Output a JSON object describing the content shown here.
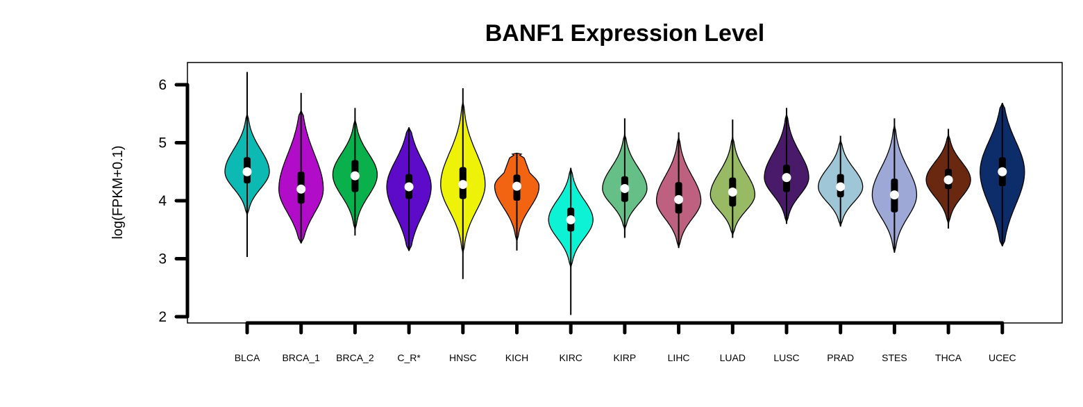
{
  "chart_data": {
    "type": "violin",
    "title": "BANF1 Expression Level",
    "xlabel": "",
    "ylabel": "log(FPKM+0.1)",
    "ylim": [
      2,
      6
    ],
    "yticks": [
      2,
      3,
      4,
      5,
      6
    ],
    "categories": [
      "BLCA",
      "BRCA_1",
      "BRCA_2",
      "C_R*",
      "HNSC",
      "KICH",
      "KIRC",
      "KIRP",
      "LIHC",
      "LUAD",
      "LUSC",
      "PRAD",
      "STES",
      "THCA",
      "UCEC"
    ],
    "series": [
      {
        "category": "BLCA",
        "color": "#0CB9B3",
        "median": 4.5,
        "q1": 4.3,
        "q3": 4.75,
        "whisker_min": 3.03,
        "whisker_max": 6.22,
        "violin_min": 3.75,
        "violin_max": 5.5,
        "mode": 4.5,
        "shape": "symmetric"
      },
      {
        "category": "BRCA_1",
        "color": "#B10DC9",
        "median": 4.2,
        "q1": 3.95,
        "q3": 4.5,
        "whisker_min": 3.27,
        "whisker_max": 5.86,
        "violin_min": 3.27,
        "violin_max": 5.55,
        "mode": 4.2,
        "shape": "wide"
      },
      {
        "category": "BRCA_2",
        "color": "#09B04C",
        "median": 4.43,
        "q1": 4.15,
        "q3": 4.7,
        "whisker_min": 3.4,
        "whisker_max": 5.6,
        "violin_min": 3.5,
        "violin_max": 5.4,
        "mode": 4.45,
        "shape": "symmetric"
      },
      {
        "category": "C_R*",
        "color": "#5E0AC9",
        "median": 4.24,
        "q1": 4.03,
        "q3": 4.46,
        "whisker_min": 3.14,
        "whisker_max": 5.26,
        "violin_min": 3.14,
        "violin_max": 5.26,
        "mode": 4.24,
        "shape": "wide"
      },
      {
        "category": "HNSC",
        "color": "#EEF209",
        "median": 4.28,
        "q1": 4.03,
        "q3": 4.58,
        "whisker_min": 2.65,
        "whisker_max": 5.94,
        "violin_min": 3.1,
        "violin_max": 5.7,
        "mode": 4.28,
        "shape": "symmetric"
      },
      {
        "category": "KICH",
        "color": "#F26411",
        "median": 4.25,
        "q1": 4.0,
        "q3": 4.45,
        "whisker_min": 3.14,
        "whisker_max": 4.82,
        "violin_min": 3.3,
        "violin_max": 4.82,
        "mode": 4.25,
        "shape": "flattop"
      },
      {
        "category": "KIRC",
        "color": "#0DF2D4",
        "median": 3.67,
        "q1": 3.47,
        "q3": 3.88,
        "whisker_min": 2.03,
        "whisker_max": 4.56,
        "violin_min": 2.85,
        "violin_max": 4.56,
        "mode": 3.67,
        "shape": "symmetric"
      },
      {
        "category": "KIRP",
        "color": "#66BF86",
        "median": 4.21,
        "q1": 3.98,
        "q3": 4.42,
        "whisker_min": 3.36,
        "whisker_max": 5.42,
        "violin_min": 3.5,
        "violin_max": 5.15,
        "mode": 4.21,
        "shape": "symmetric"
      },
      {
        "category": "LIHC",
        "color": "#BE6180",
        "median": 4.02,
        "q1": 3.78,
        "q3": 4.32,
        "whisker_min": 3.19,
        "whisker_max": 5.18,
        "violin_min": 3.19,
        "violin_max": 5.1,
        "mode": 4.0,
        "shape": "symmetric"
      },
      {
        "category": "LUAD",
        "color": "#98BA64",
        "median": 4.15,
        "q1": 3.9,
        "q3": 4.4,
        "whisker_min": 3.36,
        "whisker_max": 5.4,
        "violin_min": 3.4,
        "violin_max": 5.1,
        "mode": 4.1,
        "shape": "symmetric"
      },
      {
        "category": "LUSC",
        "color": "#4A1A6A",
        "median": 4.4,
        "q1": 4.15,
        "q3": 4.62,
        "whisker_min": 3.6,
        "whisker_max": 5.6,
        "violin_min": 3.62,
        "violin_max": 5.5,
        "mode": 4.4,
        "shape": "symmetric"
      },
      {
        "category": "PRAD",
        "color": "#9FC6D6",
        "median": 4.24,
        "q1": 4.06,
        "q3": 4.46,
        "whisker_min": 3.56,
        "whisker_max": 5.12,
        "violin_min": 3.56,
        "violin_max": 5.05,
        "mode": 4.24,
        "shape": "symmetric"
      },
      {
        "category": "STES",
        "color": "#9DA8D6",
        "median": 4.1,
        "q1": 3.8,
        "q3": 4.38,
        "whisker_min": 3.11,
        "whisker_max": 5.42,
        "violin_min": 3.11,
        "violin_max": 5.3,
        "mode": 4.1,
        "shape": "symmetric"
      },
      {
        "category": "THCA",
        "color": "#6A2811",
        "median": 4.36,
        "q1": 4.2,
        "q3": 4.55,
        "whisker_min": 3.52,
        "whisker_max": 5.24,
        "violin_min": 3.6,
        "violin_max": 5.15,
        "mode": 4.36,
        "shape": "symmetric"
      },
      {
        "category": "UCEC",
        "color": "#0D2C6A",
        "median": 4.5,
        "q1": 4.25,
        "q3": 4.75,
        "whisker_min": 3.22,
        "whisker_max": 5.68,
        "violin_min": 3.22,
        "violin_max": 5.68,
        "mode": 4.5,
        "shape": "wide"
      }
    ],
    "grid": false,
    "legend": "none"
  }
}
